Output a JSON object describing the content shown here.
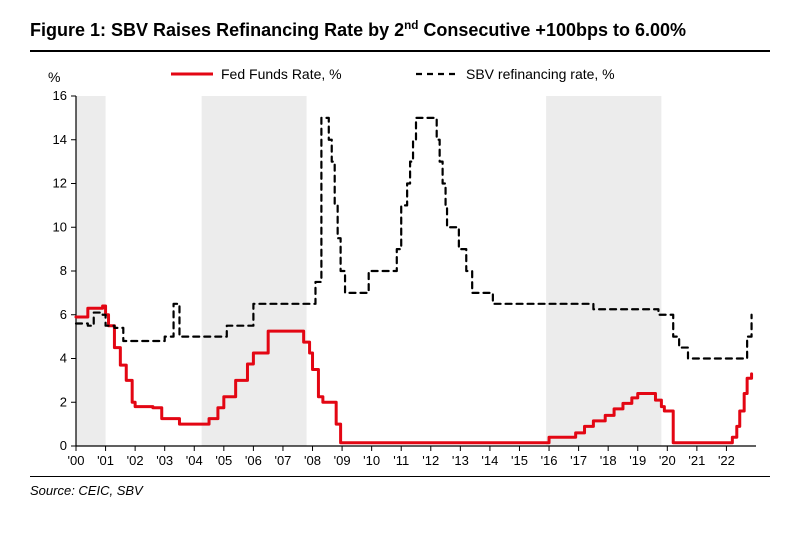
{
  "title_prefix": "Figure 1: SBV Raises Refinancing Rate by 2",
  "title_super": "nd",
  "title_suffix": " Consecutive +100bps to 6.00%",
  "source": "Source: CEIC, SBV",
  "chart": {
    "type": "line",
    "background_color": "#ffffff",
    "shade_color": "#ececec",
    "axis_color": "#000000",
    "tick_color": "#000000",
    "y_axis_label": "%",
    "y_min": 0,
    "y_max": 16,
    "y_tick_step": 2,
    "x_min": 2000,
    "x_max": 2023,
    "x_ticks": [
      2000,
      2001,
      2002,
      2003,
      2004,
      2005,
      2006,
      2007,
      2008,
      2009,
      2010,
      2011,
      2012,
      2013,
      2014,
      2015,
      2016,
      2017,
      2018,
      2019,
      2020,
      2021,
      2022
    ],
    "x_tick_labels": [
      "'00",
      "'01",
      "'02",
      "'03",
      "'04",
      "'05",
      "'06",
      "'07",
      "'08",
      "'09",
      "'10",
      "'11",
      "'12",
      "'13",
      "'14",
      "'15",
      "'16",
      "'17",
      "'18",
      "'19",
      "'20",
      "'21",
      "'22"
    ],
    "shaded_ranges": [
      {
        "from": 2000.0,
        "to": 2001.0
      },
      {
        "from": 2004.25,
        "to": 2007.8
      },
      {
        "from": 2015.9,
        "to": 2019.8
      }
    ],
    "legend": {
      "fed": "Fed Funds Rate, %",
      "sbv": "SBV refinancing rate, %"
    },
    "series": {
      "fed": {
        "color": "#e30613",
        "width": 3,
        "dash": "none",
        "points": [
          [
            2000.0,
            5.9
          ],
          [
            2000.4,
            6.3
          ],
          [
            2000.9,
            6.4
          ],
          [
            2001.0,
            6.0
          ],
          [
            2001.1,
            5.5
          ],
          [
            2001.3,
            4.5
          ],
          [
            2001.5,
            3.7
          ],
          [
            2001.7,
            3.0
          ],
          [
            2001.9,
            2.0
          ],
          [
            2002.0,
            1.8
          ],
          [
            2002.6,
            1.75
          ],
          [
            2002.9,
            1.25
          ],
          [
            2003.3,
            1.25
          ],
          [
            2003.5,
            1.0
          ],
          [
            2004.3,
            1.0
          ],
          [
            2004.5,
            1.25
          ],
          [
            2004.8,
            1.75
          ],
          [
            2005.0,
            2.25
          ],
          [
            2005.4,
            3.0
          ],
          [
            2005.8,
            3.75
          ],
          [
            2006.0,
            4.25
          ],
          [
            2006.5,
            5.25
          ],
          [
            2007.0,
            5.25
          ],
          [
            2007.6,
            5.25
          ],
          [
            2007.7,
            4.75
          ],
          [
            2007.9,
            4.25
          ],
          [
            2008.0,
            3.5
          ],
          [
            2008.2,
            2.25
          ],
          [
            2008.35,
            2.0
          ],
          [
            2008.75,
            2.0
          ],
          [
            2008.8,
            1.0
          ],
          [
            2008.95,
            0.15
          ],
          [
            2009.5,
            0.15
          ],
          [
            2011.0,
            0.15
          ],
          [
            2013.0,
            0.15
          ],
          [
            2015.0,
            0.15
          ],
          [
            2015.9,
            0.15
          ],
          [
            2016.0,
            0.4
          ],
          [
            2016.9,
            0.6
          ],
          [
            2017.2,
            0.9
          ],
          [
            2017.5,
            1.15
          ],
          [
            2017.9,
            1.4
          ],
          [
            2018.2,
            1.7
          ],
          [
            2018.5,
            1.95
          ],
          [
            2018.8,
            2.2
          ],
          [
            2019.0,
            2.4
          ],
          [
            2019.5,
            2.4
          ],
          [
            2019.6,
            2.1
          ],
          [
            2019.8,
            1.8
          ],
          [
            2019.9,
            1.6
          ],
          [
            2020.15,
            1.6
          ],
          [
            2020.2,
            0.15
          ],
          [
            2021.0,
            0.15
          ],
          [
            2022.0,
            0.15
          ],
          [
            2022.2,
            0.4
          ],
          [
            2022.35,
            0.9
          ],
          [
            2022.45,
            1.6
          ],
          [
            2022.6,
            2.4
          ],
          [
            2022.7,
            3.1
          ],
          [
            2022.85,
            3.3
          ]
        ]
      },
      "sbv": {
        "color": "#000000",
        "width": 2.2,
        "dash": "6,5",
        "points": [
          [
            2000.0,
            5.6
          ],
          [
            2000.4,
            5.5
          ],
          [
            2000.6,
            6.1
          ],
          [
            2000.9,
            6.0
          ],
          [
            2001.0,
            5.5
          ],
          [
            2001.3,
            5.4
          ],
          [
            2001.6,
            4.8
          ],
          [
            2002.0,
            4.8
          ],
          [
            2002.7,
            4.8
          ],
          [
            2003.0,
            5.0
          ],
          [
            2003.3,
            6.5
          ],
          [
            2003.5,
            5.0
          ],
          [
            2004.0,
            5.0
          ],
          [
            2005.0,
            5.0
          ],
          [
            2005.1,
            5.5
          ],
          [
            2005.9,
            5.5
          ],
          [
            2006.0,
            6.5
          ],
          [
            2007.0,
            6.5
          ],
          [
            2008.0,
            6.5
          ],
          [
            2008.1,
            7.5
          ],
          [
            2008.3,
            15.0
          ],
          [
            2008.45,
            15.0
          ],
          [
            2008.55,
            14.0
          ],
          [
            2008.65,
            13.0
          ],
          [
            2008.75,
            11.0
          ],
          [
            2008.85,
            9.5
          ],
          [
            2008.95,
            8.0
          ],
          [
            2009.1,
            7.0
          ],
          [
            2009.5,
            7.0
          ],
          [
            2009.9,
            8.0
          ],
          [
            2010.5,
            8.0
          ],
          [
            2010.85,
            9.0
          ],
          [
            2011.0,
            11.0
          ],
          [
            2011.2,
            12.0
          ],
          [
            2011.3,
            13.0
          ],
          [
            2011.4,
            14.0
          ],
          [
            2011.5,
            15.0
          ],
          [
            2011.9,
            15.0
          ],
          [
            2012.0,
            15.0
          ],
          [
            2012.2,
            14.0
          ],
          [
            2012.3,
            13.0
          ],
          [
            2012.4,
            12.0
          ],
          [
            2012.5,
            11.0
          ],
          [
            2012.55,
            10.0
          ],
          [
            2012.95,
            9.0
          ],
          [
            2013.2,
            8.0
          ],
          [
            2013.4,
            7.0
          ],
          [
            2014.1,
            6.5
          ],
          [
            2015.0,
            6.5
          ],
          [
            2016.0,
            6.5
          ],
          [
            2017.0,
            6.5
          ],
          [
            2017.5,
            6.25
          ],
          [
            2019.0,
            6.25
          ],
          [
            2019.7,
            6.0
          ],
          [
            2020.15,
            6.0
          ],
          [
            2020.2,
            5.0
          ],
          [
            2020.4,
            4.5
          ],
          [
            2020.7,
            4.0
          ],
          [
            2021.5,
            4.0
          ],
          [
            2022.6,
            4.0
          ],
          [
            2022.7,
            5.0
          ],
          [
            2022.85,
            6.0
          ]
        ]
      }
    }
  }
}
